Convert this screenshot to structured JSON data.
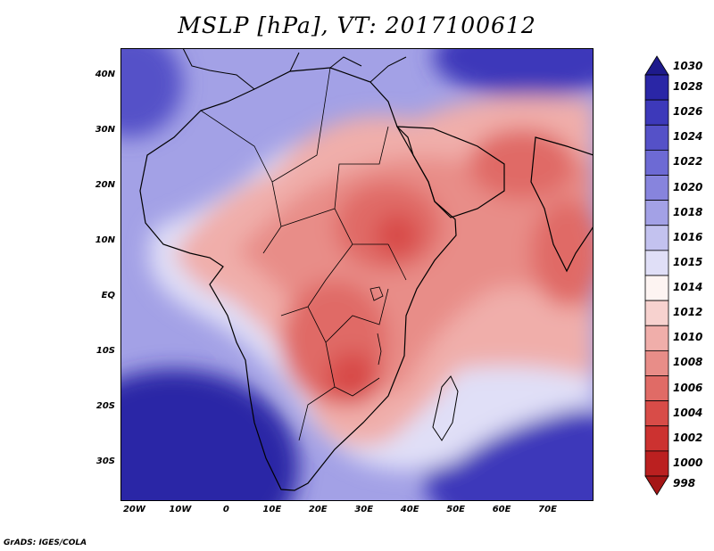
{
  "title": "MSLP [hPa], VT: 2017100612",
  "footer": "GrADS: IGES/COLA",
  "map": {
    "lon_range": [
      -23,
      80
    ],
    "lat_range": [
      -37,
      45
    ],
    "lat_ticks": [
      {
        "value": 40,
        "label": "40N"
      },
      {
        "value": 30,
        "label": "30N"
      },
      {
        "value": 20,
        "label": "20N"
      },
      {
        "value": 10,
        "label": "10N"
      },
      {
        "value": 0,
        "label": "EQ"
      },
      {
        "value": -10,
        "label": "10S"
      },
      {
        "value": -20,
        "label": "20S"
      },
      {
        "value": -30,
        "label": "30S"
      }
    ],
    "lon_ticks": [
      {
        "value": -20,
        "label": "20W"
      },
      {
        "value": -10,
        "label": "10W"
      },
      {
        "value": 0,
        "label": "0"
      },
      {
        "value": 10,
        "label": "10E"
      },
      {
        "value": 20,
        "label": "20E"
      },
      {
        "value": 30,
        "label": "30E"
      },
      {
        "value": 40,
        "label": "40E"
      },
      {
        "value": 50,
        "label": "50E"
      },
      {
        "value": 60,
        "label": "60E"
      },
      {
        "value": 70,
        "label": "70E"
      }
    ]
  },
  "colorbar": {
    "levels": [
      {
        "label": "1030",
        "color": "#1e1a8c"
      },
      {
        "label": "1028",
        "color": "#2a26a6"
      },
      {
        "label": "1026",
        "color": "#3d39ba"
      },
      {
        "label": "1024",
        "color": "#5551c8"
      },
      {
        "label": "1022",
        "color": "#6d6ad4"
      },
      {
        "label": "1020",
        "color": "#8784dd"
      },
      {
        "label": "1018",
        "color": "#a3a1e6"
      },
      {
        "label": "1016",
        "color": "#c3c2ef"
      },
      {
        "label": "1015",
        "color": "#e0dff7"
      },
      {
        "label": "1014",
        "color": "#fdf4f2"
      },
      {
        "label": "1012",
        "color": "#f7d2cf"
      },
      {
        "label": "1010",
        "color": "#f0aeaa"
      },
      {
        "label": "1008",
        "color": "#e88d88"
      },
      {
        "label": "1006",
        "color": "#e06b66"
      },
      {
        "label": "1004",
        "color": "#d84c48"
      },
      {
        "label": "1002",
        "color": "#cc3230"
      },
      {
        "label": "1000",
        "color": "#bb2020"
      },
      {
        "label": "998",
        "color": "#a51616"
      }
    ]
  }
}
